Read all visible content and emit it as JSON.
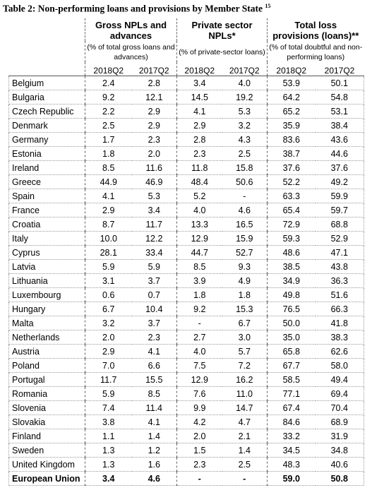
{
  "title": "Table 2: Non-performing loans and provisions by Member State",
  "title_note": "15",
  "table": {
    "groups": [
      {
        "title": "Gross NPLs and advances",
        "subtitle": "(% of total gross loans and advances)",
        "columns": [
          "2018Q2",
          "2017Q2"
        ]
      },
      {
        "title": "Private sector NPLs*",
        "subtitle": "(% of private-sector loans)",
        "columns": [
          "2018Q2",
          "2017Q2"
        ]
      },
      {
        "title": "Total loss provisions (loans)**",
        "subtitle": "(% of total doubtful and non-performing loans)",
        "columns": [
          "2018Q2",
          "2017Q2"
        ]
      }
    ],
    "rows": [
      [
        "Belgium",
        "2.4",
        "2.8",
        "3.4",
        "4.0",
        "53.9",
        "50.1"
      ],
      [
        "Bulgaria",
        "9.2",
        "12.1",
        "14.5",
        "19.2",
        "64.2",
        "54.8"
      ],
      [
        "Czech Republic",
        "2.2",
        "2.9",
        "4.1",
        "5.3",
        "65.2",
        "53.1"
      ],
      [
        "Denmark",
        "2.5",
        "2.9",
        "2.9",
        "3.2",
        "35.9",
        "38.4"
      ],
      [
        "Germany",
        "1.7",
        "2.3",
        "2.8",
        "4.3",
        "83.6",
        "43.6"
      ],
      [
        "Estonia",
        "1.8",
        "2.0",
        "2.3",
        "2.5",
        "38.7",
        "44.6"
      ],
      [
        "Ireland",
        "8.5",
        "11.6",
        "11.8",
        "15.8",
        "37.6",
        "37.6"
      ],
      [
        "Greece",
        "44.9",
        "46.9",
        "48.4",
        "50.6",
        "52.2",
        "49.2"
      ],
      [
        "Spain",
        "4.1",
        "5.3",
        "5.2",
        "-",
        "63.3",
        "59.9"
      ],
      [
        "France",
        "2.9",
        "3.4",
        "4.0",
        "4.6",
        "65.4",
        "59.7"
      ],
      [
        "Croatia",
        "8.7",
        "11.7",
        "13.3",
        "16.5",
        "72.9",
        "68.8"
      ],
      [
        "Italy",
        "10.0",
        "12.2",
        "12.9",
        "15.9",
        "59.3",
        "52.9"
      ],
      [
        "Cyprus",
        "28.1",
        "33.4",
        "44.7",
        "52.7",
        "48.6",
        "47.1"
      ],
      [
        "Latvia",
        "5.9",
        "5.9",
        "8.5",
        "9.3",
        "38.5",
        "43.8"
      ],
      [
        "Lithuania",
        "3.1",
        "3.7",
        "3.9",
        "4.9",
        "34.9",
        "36.3"
      ],
      [
        "Luxembourg",
        "0.6",
        "0.7",
        "1.8",
        "1.8",
        "49.8",
        "51.6"
      ],
      [
        "Hungary",
        "6.7",
        "10.4",
        "9.2",
        "15.3",
        "76.5",
        "66.3"
      ],
      [
        "Malta",
        "3.2",
        "3.7",
        "-",
        "6.7",
        "50.0",
        "41.8"
      ],
      [
        "Netherlands",
        "2.0",
        "2.3",
        "2.7",
        "3.0",
        "35.0",
        "38.3"
      ],
      [
        "Austria",
        "2.9",
        "4.1",
        "4.0",
        "5.7",
        "65.8",
        "62.6"
      ],
      [
        "Poland",
        "7.0",
        "6.6",
        "7.5",
        "7.2",
        "67.7",
        "58.0"
      ],
      [
        "Portugal",
        "11.7",
        "15.5",
        "12.9",
        "16.2",
        "58.5",
        "49.4"
      ],
      [
        "Romania",
        "5.9",
        "8.5",
        "7.6",
        "11.0",
        "77.1",
        "69.4"
      ],
      [
        "Slovenia",
        "7.4",
        "11.4",
        "9.9",
        "14.7",
        "67.4",
        "70.4"
      ],
      [
        "Slovakia",
        "3.8",
        "4.1",
        "4.2",
        "4.7",
        "84.6",
        "68.9"
      ],
      [
        "Finland",
        "1.1",
        "1.4",
        "2.0",
        "2.1",
        "33.2",
        "31.9"
      ],
      [
        "Sweden",
        "1.3",
        "1.2",
        "1.5",
        "1.4",
        "34.5",
        "34.8"
      ],
      [
        "United Kingdom",
        "1.3",
        "1.6",
        "2.3",
        "2.5",
        "48.3",
        "40.6"
      ],
      [
        "European Union",
        "3.4",
        "4.6",
        "-",
        "-",
        "59.0",
        "50.8"
      ]
    ]
  }
}
